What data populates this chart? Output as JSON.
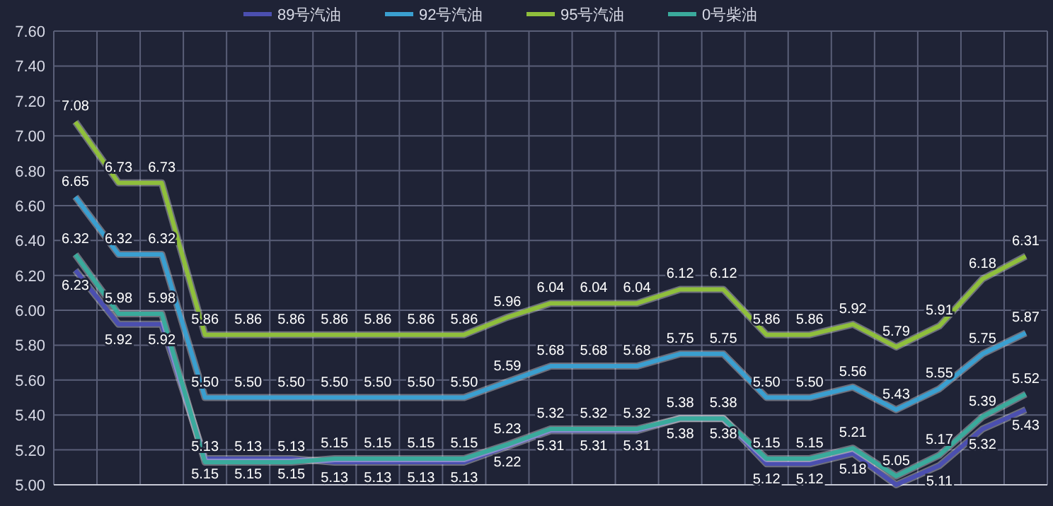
{
  "chart_data": {
    "type": "line",
    "categories": [
      null,
      null,
      null,
      null,
      null,
      null,
      null,
      null,
      null,
      null,
      null,
      null,
      null,
      null,
      null,
      null,
      null,
      null,
      null,
      null,
      null,
      null,
      null
    ],
    "ylim": [
      5.0,
      7.6
    ],
    "yticks": [
      {
        "value": 5.0,
        "label": "5.00"
      },
      {
        "value": 5.2,
        "label": "5.20"
      },
      {
        "value": 5.4,
        "label": "5.40"
      },
      {
        "value": 5.6,
        "label": "5.60"
      },
      {
        "value": 5.8,
        "label": "5.80"
      },
      {
        "value": 6.0,
        "label": "6.00"
      },
      {
        "value": 6.2,
        "label": "6.20"
      },
      {
        "value": 6.4,
        "label": "6.40"
      },
      {
        "value": 6.6,
        "label": "6.60"
      },
      {
        "value": 6.8,
        "label": "6.80"
      },
      {
        "value": 7.0,
        "label": "7.00"
      },
      {
        "value": 7.2,
        "label": "7.20"
      },
      {
        "value": 7.4,
        "label": "7.40"
      },
      {
        "value": 7.6,
        "label": "7.60"
      }
    ],
    "grid": true,
    "legend": "top",
    "tick_labels": "y",
    "series": [
      {
        "name": "89号汽油",
        "color": "#4b4fb0",
        "values": [
          6.23,
          5.92,
          5.92,
          5.15,
          5.15,
          5.15,
          5.13,
          5.13,
          5.13,
          5.13,
          5.22,
          5.31,
          5.31,
          5.31,
          5.38,
          5.38,
          5.12,
          5.12,
          5.18,
          5.0,
          5.11,
          5.32,
          5.43
        ],
        "value_labels": [
          "6.23",
          "5.92",
          "5.92",
          "5.15",
          "5.15",
          "5.15",
          "5.13",
          "5.13",
          "5.13",
          "5.13",
          "5.22",
          "5.31",
          "5.31",
          "5.31",
          "5.38",
          "5.38",
          "5.12",
          "5.12",
          "5.18",
          null,
          "5.11",
          "5.32",
          "5.43"
        ]
      },
      {
        "name": "92号汽油",
        "color": "#3a9fd0",
        "values": [
          6.65,
          6.32,
          6.32,
          5.5,
          5.5,
          5.5,
          5.5,
          5.5,
          5.5,
          5.5,
          5.59,
          5.68,
          5.68,
          5.68,
          5.75,
          5.75,
          5.5,
          5.5,
          5.56,
          5.43,
          5.55,
          5.75,
          5.87
        ],
        "value_labels": [
          "6.65",
          "6.32",
          "6.32",
          "5.50",
          "5.50",
          "5.50",
          "5.50",
          "5.50",
          "5.50",
          "5.50",
          "5.59",
          "5.68",
          "5.68",
          "5.68",
          "5.75",
          "5.75",
          "5.50",
          "5.50",
          "5.56",
          "5.43",
          "5.55",
          "5.75",
          "5.87"
        ]
      },
      {
        "name": "95号汽油",
        "color": "#8fbf3c",
        "values": [
          7.08,
          6.73,
          6.73,
          5.86,
          5.86,
          5.86,
          5.86,
          5.86,
          5.86,
          5.86,
          5.96,
          6.04,
          6.04,
          6.04,
          6.12,
          6.12,
          5.86,
          5.86,
          5.92,
          5.79,
          5.91,
          6.18,
          6.31
        ],
        "value_labels": [
          "7.08",
          "6.73",
          "6.73",
          "5.86",
          "5.86",
          "5.86",
          "5.86",
          "5.86",
          "5.86",
          "5.86",
          "5.96",
          "6.04",
          "6.04",
          "6.04",
          "6.12",
          "6.12",
          "5.86",
          "5.86",
          "5.92",
          "5.79",
          "5.91",
          "6.18",
          "6.31"
        ]
      },
      {
        "name": "0号柴油",
        "color": "#3aaa9c",
        "values": [
          6.32,
          5.98,
          5.98,
          5.13,
          5.13,
          5.13,
          5.15,
          5.15,
          5.15,
          5.15,
          5.23,
          5.32,
          5.32,
          5.32,
          5.38,
          5.38,
          5.15,
          5.15,
          5.21,
          5.05,
          5.17,
          5.39,
          5.52
        ],
        "value_labels": [
          "6.32",
          "5.98",
          "5.98",
          "5.13",
          "5.13",
          "5.13",
          "5.15",
          "5.15",
          "5.15",
          "5.15",
          "5.23",
          "5.32",
          "5.32",
          "5.32",
          "5.38",
          "5.38",
          "5.15",
          "5.15",
          "5.21",
          "5.05",
          "5.17",
          "5.39",
          "5.52"
        ]
      }
    ]
  }
}
